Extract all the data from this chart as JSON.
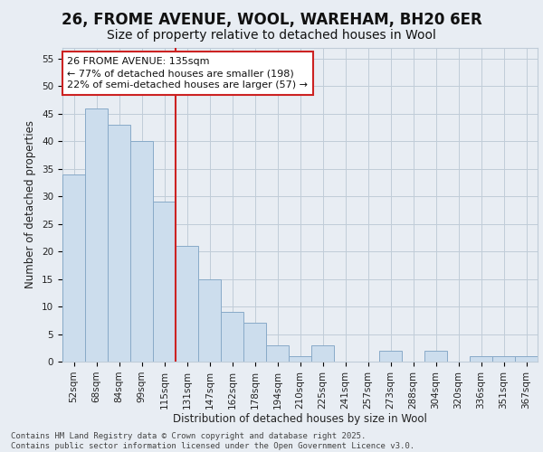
{
  "title_line1": "26, FROME AVENUE, WOOL, WAREHAM, BH20 6ER",
  "title_line2": "Size of property relative to detached houses in Wool",
  "xlabel": "Distribution of detached houses by size in Wool",
  "ylabel": "Number of detached properties",
  "categories": [
    "52sqm",
    "68sqm",
    "84sqm",
    "99sqm",
    "115sqm",
    "131sqm",
    "147sqm",
    "162sqm",
    "178sqm",
    "194sqm",
    "210sqm",
    "225sqm",
    "241sqm",
    "257sqm",
    "273sqm",
    "288sqm",
    "304sqm",
    "320sqm",
    "336sqm",
    "351sqm",
    "367sqm"
  ],
  "values": [
    34,
    46,
    43,
    40,
    29,
    21,
    15,
    9,
    7,
    3,
    1,
    3,
    0,
    0,
    2,
    0,
    2,
    0,
    1,
    1,
    1
  ],
  "bar_color": "#ccdded",
  "bar_edge_color": "#88aac8",
  "vline_color": "#cc2222",
  "vline_x": 4.5,
  "annotation_line1": "26 FROME AVENUE: 135sqm",
  "annotation_line2": "← 77% of detached houses are smaller (198)",
  "annotation_line3": "22% of semi-detached houses are larger (57) →",
  "annotation_box_color": "#cc2222",
  "ylim": [
    0,
    57
  ],
  "yticks": [
    0,
    5,
    10,
    15,
    20,
    25,
    30,
    35,
    40,
    45,
    50,
    55
  ],
  "background_color": "#e8edf3",
  "plot_background_color": "#e8edf3",
  "grid_color": "#c0ccd8",
  "footer_text": "Contains HM Land Registry data © Crown copyright and database right 2025.\nContains public sector information licensed under the Open Government Licence v3.0.",
  "title_fontsize": 12,
  "subtitle_fontsize": 10,
  "axis_label_fontsize": 8.5,
  "tick_fontsize": 7.5,
  "annotation_fontsize": 8,
  "footer_fontsize": 6.5
}
